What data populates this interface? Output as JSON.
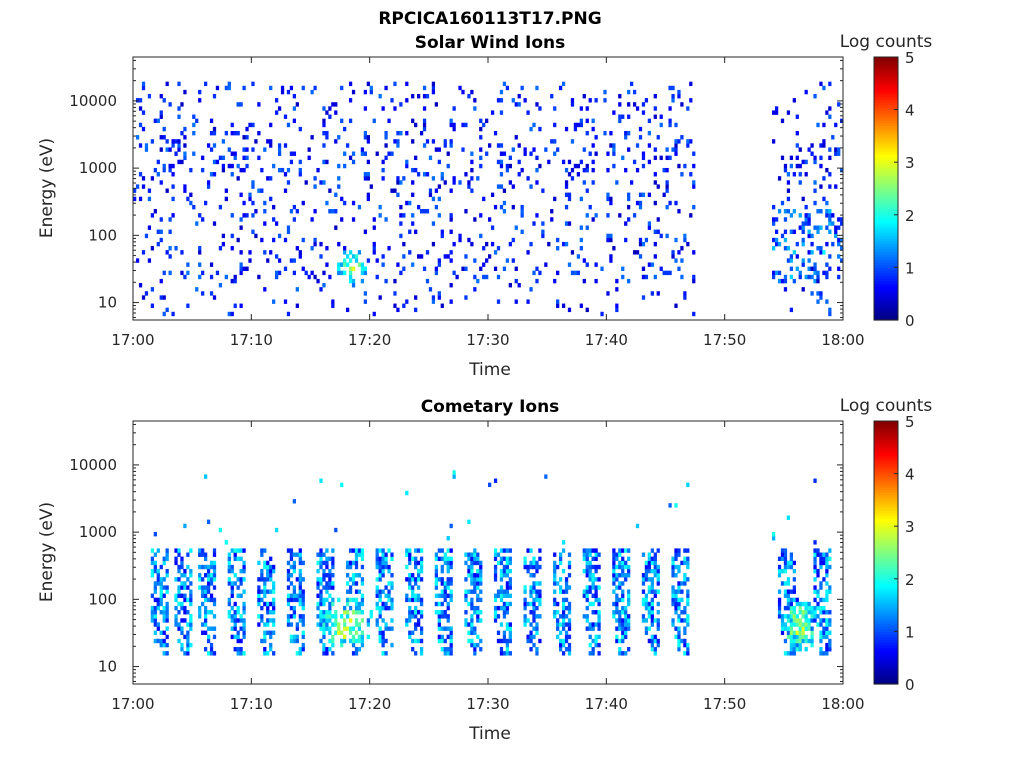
{
  "figure": {
    "title": "RPCICA160113T17.PNG"
  },
  "chart_data": [
    {
      "type": "heatmap",
      "title": "Solar Wind Ions",
      "xlabel": "Time",
      "ylabel": "Energy (eV)",
      "x_axis": {
        "type": "time",
        "range": [
          "17:00",
          "18:00"
        ],
        "ticks": [
          "17:00",
          "17:10",
          "17:20",
          "17:30",
          "17:40",
          "17:50",
          "18:00"
        ],
        "data_gaps": [
          [
            "17:47:30",
            "17:54:00"
          ]
        ]
      },
      "y_axis": {
        "type": "log",
        "range": [
          5.5,
          45000
        ],
        "ticks": [
          10,
          100,
          1000,
          10000
        ],
        "tick_labels": [
          "10",
          "100",
          "1000",
          "10000"
        ]
      },
      "colorbar": {
        "label": "Log counts",
        "range": [
          0,
          5
        ],
        "ticks": [
          "0",
          "1",
          "2",
          "3",
          "4",
          "5"
        ],
        "colormap": "jet"
      },
      "grid": false,
      "regions": [
        {
          "t_start": "17:00",
          "t_end": "17:47:30",
          "e_min": 20,
          "e_max": 20000,
          "typical_log_counts": [
            0,
            1
          ],
          "description_level": "sparse"
        },
        {
          "t_start": "17:16",
          "t_end": "17:19",
          "e_min": 20,
          "e_max": 100,
          "typical_log_counts": [
            1,
            3
          ]
        },
        {
          "t_start": "17:54",
          "t_end": "18:00",
          "e_min": 10,
          "e_max": 12000,
          "typical_log_counts": [
            0,
            2
          ]
        }
      ],
      "peak": {
        "time": "17:18:30",
        "energy": 33,
        "log_counts": 3
      }
    },
    {
      "type": "heatmap",
      "title": "Cometary Ions",
      "xlabel": "Time",
      "ylabel": "Energy (eV)",
      "x_axis": {
        "type": "time",
        "range": [
          "17:00",
          "18:00"
        ],
        "ticks": [
          "17:00",
          "17:10",
          "17:20",
          "17:30",
          "17:40",
          "17:50",
          "18:00"
        ],
        "data_gaps": [
          [
            "17:47:30",
            "17:54:00"
          ]
        ]
      },
      "y_axis": {
        "type": "log",
        "range": [
          5.5,
          45000
        ],
        "ticks": [
          10,
          100,
          1000,
          10000
        ],
        "tick_labels": [
          "10",
          "100",
          "1000",
          "10000"
        ]
      },
      "colorbar": {
        "label": "Log counts",
        "range": [
          0,
          5
        ],
        "ticks": [
          "0",
          "1",
          "2",
          "3",
          "4",
          "5"
        ],
        "colormap": "jet"
      },
      "grid": false,
      "bursts_start_min": [
        1.5,
        3.5,
        5.5,
        8,
        10.5,
        13,
        15.5,
        18,
        20.5,
        23,
        25.5,
        28,
        30.5,
        33,
        35.5,
        38,
        40.5,
        43,
        45.5,
        54.5,
        57.5
      ],
      "burst_energy_range": [
        15,
        600
      ],
      "peak": {
        "time": "17:18",
        "energy": 40,
        "log_counts": 3
      }
    }
  ]
}
